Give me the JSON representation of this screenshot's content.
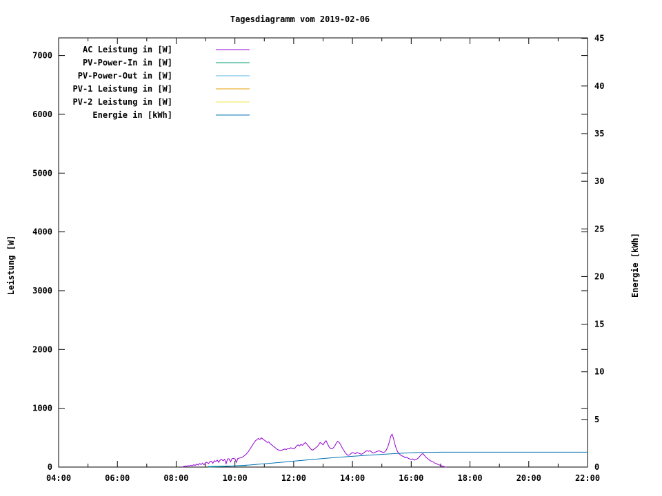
{
  "title": "Tagesdiagramm vom 2019-02-06",
  "axes": {
    "y_left_label": "Leistung [W]",
    "y_right_label": "Energie [kWh]"
  },
  "chart_data": {
    "type": "line",
    "title": "Tagesdiagramm vom 2019-02-06",
    "xlabel": "",
    "ylabel_left": "Leistung [W]",
    "ylabel_right": "Energie [kWh]",
    "grid": false,
    "legend_position": "top-left",
    "x_axis": {
      "unit": "time",
      "range_hours": [
        4,
        22
      ],
      "major_tick_hours": [
        4,
        6,
        8,
        10,
        12,
        14,
        16,
        18,
        20,
        22
      ],
      "major_tick_labels": [
        "04:00",
        "06:00",
        "08:00",
        "10:00",
        "12:00",
        "14:00",
        "16:00",
        "18:00",
        "20:00",
        "22:00"
      ],
      "minor_tick_every_hours": 1
    },
    "y_left_axis": {
      "range": [
        0,
        7300
      ],
      "tick_values": [
        0,
        1000,
        2000,
        3000,
        4000,
        5000,
        6000,
        7000
      ],
      "tick_labels": [
        "0",
        "1000",
        "2000",
        "3000",
        "4000",
        "5000",
        "6000",
        "7000"
      ]
    },
    "y_right_axis": {
      "range": [
        0,
        45.05
      ],
      "tick_values": [
        0,
        5,
        10,
        15,
        20,
        25,
        30,
        35,
        40,
        45
      ],
      "tick_labels": [
        "0",
        "5",
        "10",
        "15",
        "20",
        "25",
        "30",
        "35",
        "40",
        "45"
      ]
    },
    "series": [
      {
        "name": "AC Leistung in [W]",
        "color": "#9400D3",
        "axis": "left",
        "points": [
          [
            8.2,
            0
          ],
          [
            8.25,
            8
          ],
          [
            8.3,
            18
          ],
          [
            8.35,
            12
          ],
          [
            8.4,
            25
          ],
          [
            8.45,
            18
          ],
          [
            8.5,
            32
          ],
          [
            8.55,
            22
          ],
          [
            8.6,
            40
          ],
          [
            8.65,
            28
          ],
          [
            8.7,
            52
          ],
          [
            8.75,
            35
          ],
          [
            8.8,
            60
          ],
          [
            8.85,
            42
          ],
          [
            8.9,
            68
          ],
          [
            8.95,
            38
          ],
          [
            9.0,
            75
          ],
          [
            9.05,
            82
          ],
          [
            9.1,
            58
          ],
          [
            9.15,
            92
          ],
          [
            9.2,
            100
          ],
          [
            9.25,
            65
          ],
          [
            9.3,
            108
          ],
          [
            9.35,
            95
          ],
          [
            9.4,
            118
          ],
          [
            9.45,
            78
          ],
          [
            9.5,
            122
          ],
          [
            9.55,
            128
          ],
          [
            9.6,
            108
          ],
          [
            9.65,
            132
          ],
          [
            9.7,
            58
          ],
          [
            9.75,
            138
          ],
          [
            9.8,
            142
          ],
          [
            9.85,
            88
          ],
          [
            9.9,
            142
          ],
          [
            9.95,
            148
          ],
          [
            10.0,
            138
          ],
          [
            10.05,
            78
          ],
          [
            10.1,
            148
          ],
          [
            10.15,
            152
          ],
          [
            10.2,
            158
          ],
          [
            10.25,
            168
          ],
          [
            10.3,
            185
          ],
          [
            10.35,
            205
          ],
          [
            10.4,
            228
          ],
          [
            10.45,
            258
          ],
          [
            10.5,
            295
          ],
          [
            10.55,
            335
          ],
          [
            10.6,
            375
          ],
          [
            10.65,
            415
          ],
          [
            10.7,
            448
          ],
          [
            10.75,
            468
          ],
          [
            10.8,
            488
          ],
          [
            10.85,
            468
          ],
          [
            10.9,
            498
          ],
          [
            10.95,
            478
          ],
          [
            11.0,
            458
          ],
          [
            11.05,
            438
          ],
          [
            11.1,
            418
          ],
          [
            11.15,
            428
          ],
          [
            11.2,
            398
          ],
          [
            11.25,
            378
          ],
          [
            11.3,
            358
          ],
          [
            11.35,
            338
          ],
          [
            11.4,
            318
          ],
          [
            11.45,
            298
          ],
          [
            11.5,
            288
          ],
          [
            11.55,
            278
          ],
          [
            11.6,
            288
          ],
          [
            11.65,
            298
          ],
          [
            11.7,
            308
          ],
          [
            11.75,
            298
          ],
          [
            11.8,
            318
          ],
          [
            11.85,
            308
          ],
          [
            11.9,
            328
          ],
          [
            11.95,
            318
          ],
          [
            12.0,
            308
          ],
          [
            12.05,
            328
          ],
          [
            12.1,
            358
          ],
          [
            12.15,
            378
          ],
          [
            12.2,
            358
          ],
          [
            12.25,
            388
          ],
          [
            12.3,
            368
          ],
          [
            12.35,
            398
          ],
          [
            12.4,
            418
          ],
          [
            12.45,
            388
          ],
          [
            12.5,
            358
          ],
          [
            12.55,
            328
          ],
          [
            12.6,
            298
          ],
          [
            12.65,
            288
          ],
          [
            12.7,
            308
          ],
          [
            12.75,
            328
          ],
          [
            12.8,
            348
          ],
          [
            12.85,
            378
          ],
          [
            12.9,
            418
          ],
          [
            12.95,
            398
          ],
          [
            13.0,
            378
          ],
          [
            13.05,
            418
          ],
          [
            13.1,
            448
          ],
          [
            13.15,
            398
          ],
          [
            13.2,
            348
          ],
          [
            13.25,
            318
          ],
          [
            13.3,
            308
          ],
          [
            13.35,
            328
          ],
          [
            13.4,
            358
          ],
          [
            13.45,
            408
          ],
          [
            13.5,
            438
          ],
          [
            13.55,
            418
          ],
          [
            13.6,
            378
          ],
          [
            13.65,
            328
          ],
          [
            13.7,
            288
          ],
          [
            13.75,
            248
          ],
          [
            13.8,
            218
          ],
          [
            13.85,
            198
          ],
          [
            13.9,
            208
          ],
          [
            13.95,
            228
          ],
          [
            14.0,
            248
          ],
          [
            14.05,
            238
          ],
          [
            14.1,
            228
          ],
          [
            14.15,
            248
          ],
          [
            14.2,
            238
          ],
          [
            14.25,
            228
          ],
          [
            14.3,
            218
          ],
          [
            14.35,
            228
          ],
          [
            14.4,
            248
          ],
          [
            14.45,
            268
          ],
          [
            14.5,
            278
          ],
          [
            14.55,
            268
          ],
          [
            14.6,
            278
          ],
          [
            14.65,
            258
          ],
          [
            14.7,
            238
          ],
          [
            14.75,
            248
          ],
          [
            14.8,
            258
          ],
          [
            14.85,
            268
          ],
          [
            14.9,
            278
          ],
          [
            14.95,
            268
          ],
          [
            15.0,
            258
          ],
          [
            15.05,
            248
          ],
          [
            15.1,
            258
          ],
          [
            15.15,
            288
          ],
          [
            15.2,
            338
          ],
          [
            15.25,
            420
          ],
          [
            15.3,
            520
          ],
          [
            15.35,
            560
          ],
          [
            15.4,
            480
          ],
          [
            15.45,
            380
          ],
          [
            15.5,
            300
          ],
          [
            15.55,
            250
          ],
          [
            15.6,
            220
          ],
          [
            15.65,
            200
          ],
          [
            15.7,
            188
          ],
          [
            15.75,
            178
          ],
          [
            15.8,
            158
          ],
          [
            15.85,
            168
          ],
          [
            15.9,
            148
          ],
          [
            15.95,
            138
          ],
          [
            16.0,
            128
          ],
          [
            16.05,
            140
          ],
          [
            16.1,
            118
          ],
          [
            16.15,
            128
          ],
          [
            16.2,
            138
          ],
          [
            16.25,
            158
          ],
          [
            16.3,
            188
          ],
          [
            16.35,
            218
          ],
          [
            16.4,
            228
          ],
          [
            16.45,
            198
          ],
          [
            16.5,
            168
          ],
          [
            16.55,
            148
          ],
          [
            16.6,
            128
          ],
          [
            16.65,
            108
          ],
          [
            16.7,
            98
          ],
          [
            16.75,
            88
          ],
          [
            16.8,
            68
          ],
          [
            16.85,
            58
          ],
          [
            16.9,
            48
          ],
          [
            16.95,
            38
          ],
          [
            17.0,
            28
          ],
          [
            17.05,
            18
          ],
          [
            17.1,
            10
          ],
          [
            17.15,
            4
          ],
          [
            17.2,
            0
          ]
        ]
      },
      {
        "name": "PV-Power-In in [W]",
        "color": "#009E73",
        "axis": "left",
        "points": [
          [
            9.08,
            8
          ],
          [
            9.3,
            12
          ],
          [
            9.6,
            15
          ],
          [
            9.9,
            18
          ],
          [
            10.15,
            22
          ],
          [
            10.4,
            25
          ]
        ]
      },
      {
        "name": "PV-Power-Out in [W]",
        "color": "#56B4E9",
        "axis": "left",
        "points": []
      },
      {
        "name": "PV-1 Leistung in [W]",
        "color": "#E69F00",
        "axis": "left",
        "points": []
      },
      {
        "name": "PV-2 Leistung in [W]",
        "color": "#F0E442",
        "axis": "left",
        "points": []
      },
      {
        "name": "Energie in [kWh]",
        "color": "#0072B2",
        "axis": "right",
        "points": [
          [
            9.1,
            0.0
          ],
          [
            9.6,
            0.05
          ],
          [
            10.0,
            0.12
          ],
          [
            10.5,
            0.22
          ],
          [
            11.0,
            0.35
          ],
          [
            11.5,
            0.48
          ],
          [
            12.0,
            0.62
          ],
          [
            12.5,
            0.76
          ],
          [
            13.0,
            0.9
          ],
          [
            13.5,
            1.02
          ],
          [
            14.0,
            1.13
          ],
          [
            14.5,
            1.24
          ],
          [
            15.0,
            1.33
          ],
          [
            15.5,
            1.43
          ],
          [
            16.0,
            1.5
          ],
          [
            16.3,
            1.53
          ],
          [
            16.7,
            1.55
          ],
          [
            17.0,
            1.56
          ],
          [
            18.0,
            1.56
          ],
          [
            22.0,
            1.56
          ]
        ]
      }
    ]
  }
}
